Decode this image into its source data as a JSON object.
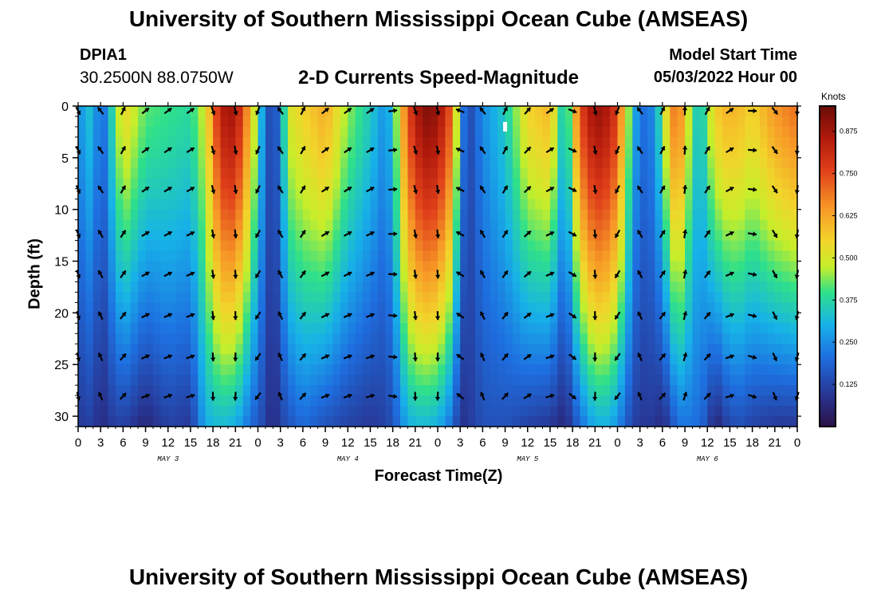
{
  "header": {
    "title": "University of Southern Mississippi Ocean Cube (AMSEAS)",
    "station": "DPIA1",
    "coords": "30.2500N  88.0750W",
    "subtitle": "2-D Currents Speed-Magnitude",
    "model_start_label": "Model Start Time",
    "model_start_value": "05/03/2022 Hour 00"
  },
  "footer": {
    "title": "University of Southern Mississippi Ocean Cube (AMSEAS)"
  },
  "colors": {
    "arrow": "#000000",
    "axis": "#000000",
    "marker": "#ffffff"
  },
  "chart_data": {
    "type": "heatmap",
    "title": "2-D Currents Speed-Magnitude",
    "xlabel": "Forecast Time(Z)",
    "ylabel": "Depth (ft)",
    "x_unit": "hours since 05/03/2022 00Z",
    "xlim": [
      0,
      96
    ],
    "ylim": [
      31,
      0
    ],
    "x_ticks": [
      0,
      3,
      6,
      9,
      12,
      15,
      18,
      21,
      24,
      27,
      30,
      33,
      36,
      39,
      42,
      45,
      48,
      51,
      54,
      57,
      60,
      63,
      66,
      69,
      72,
      75,
      78,
      81,
      84,
      87,
      90,
      93,
      96
    ],
    "x_tick_labels": [
      "0",
      "3",
      "6",
      "9",
      "12",
      "15",
      "18",
      "21",
      "0",
      "3",
      "6",
      "9",
      "12",
      "15",
      "18",
      "21",
      "0",
      "3",
      "6",
      "9",
      "12",
      "15",
      "18",
      "21",
      "0",
      "3",
      "6",
      "9",
      "12",
      "15",
      "18",
      "21",
      "0"
    ],
    "y_ticks": [
      0,
      5,
      10,
      15,
      20,
      25,
      30
    ],
    "y_tick_labels": [
      "0",
      "5",
      "10",
      "15",
      "20",
      "25",
      "30"
    ],
    "day_labels": [
      {
        "hour": 12,
        "label": "MAY 3"
      },
      {
        "hour": 36,
        "label": "MAY 4"
      },
      {
        "hour": 60,
        "label": "MAY 5"
      },
      {
        "hour": 84,
        "label": "MAY 6"
      }
    ],
    "colorbar": {
      "label": "Knots",
      "min": 0,
      "max": 0.95,
      "ticks": [
        0.125,
        0.25,
        0.375,
        0.5,
        0.625,
        0.75,
        0.875
      ],
      "tick_labels": [
        "0.125",
        "0.250",
        "0.375",
        "0.500",
        "0.625",
        "0.750",
        "0.875"
      ]
    },
    "arrow_hours": [
      0,
      3,
      6,
      9,
      12,
      15,
      18,
      21,
      24,
      27,
      30,
      33,
      36,
      39,
      42,
      45,
      48,
      51,
      54,
      57,
      60,
      63,
      66,
      69,
      72,
      75,
      78,
      81,
      84,
      87,
      90,
      93,
      96
    ],
    "arrow_depths_ft": [
      0,
      3.8,
      7.6,
      11.9,
      15.8,
      19.8,
      23.8,
      27.6
    ],
    "speed_profile": {
      "hours": [
        0,
        2,
        3,
        4,
        6,
        9,
        12,
        15,
        17,
        19,
        21,
        23,
        25,
        26,
        27,
        28,
        30,
        33,
        36,
        39,
        41,
        42,
        44,
        46,
        48,
        50,
        51,
        52,
        54,
        57,
        60,
        63,
        65,
        67,
        69,
        71,
        72,
        74,
        75,
        77,
        78,
        80,
        81,
        83,
        84,
        85,
        86,
        88,
        90,
        93,
        96
      ],
      "surface_knots": [
        0.25,
        0.35,
        0.15,
        0.3,
        0.55,
        0.42,
        0.4,
        0.38,
        0.5,
        0.85,
        0.88,
        0.6,
        0.2,
        0.1,
        0.25,
        0.5,
        0.55,
        0.62,
        0.45,
        0.35,
        0.25,
        0.35,
        0.75,
        0.92,
        0.9,
        0.7,
        0.3,
        0.12,
        0.25,
        0.35,
        0.55,
        0.6,
        0.3,
        0.75,
        0.9,
        0.85,
        0.75,
        0.35,
        0.2,
        0.25,
        0.45,
        0.75,
        0.55,
        0.3,
        0.45,
        0.55,
        0.6,
        0.6,
        0.55,
        0.65,
        0.7
      ],
      "bottom_knots": [
        0.1,
        0.12,
        0.06,
        0.1,
        0.12,
        0.06,
        0.12,
        0.1,
        0.3,
        0.32,
        0.3,
        0.2,
        0.12,
        0.06,
        0.12,
        0.15,
        0.2,
        0.15,
        0.12,
        0.1,
        0.12,
        0.15,
        0.3,
        0.32,
        0.3,
        0.2,
        0.08,
        0.1,
        0.15,
        0.15,
        0.12,
        0.1,
        0.06,
        0.2,
        0.3,
        0.3,
        0.25,
        0.12,
        0.1,
        0.1,
        0.06,
        0.2,
        0.22,
        0.2,
        0.15,
        0.04,
        0.1,
        0.15,
        0.12,
        0.1,
        0.1
      ]
    },
    "direction_profile": {
      "hours": [
        0,
        2,
        3,
        6,
        9,
        15,
        17,
        18,
        21,
        24,
        26,
        27,
        30,
        33,
        39,
        42,
        45,
        48,
        50,
        51,
        54,
        57,
        63,
        66,
        69,
        72,
        74,
        75,
        78,
        81,
        87,
        90,
        93,
        96
      ],
      "bearing_deg": [
        160,
        170,
        330,
        35,
        60,
        65,
        90,
        170,
        175,
        210,
        300,
        330,
        35,
        60,
        65,
        90,
        170,
        175,
        210,
        300,
        330,
        35,
        65,
        120,
        175,
        210,
        240,
        330,
        35,
        10,
        65,
        100,
        150,
        190
      ]
    },
    "marker": {
      "hour": 57,
      "depth_ft": 2
    }
  }
}
